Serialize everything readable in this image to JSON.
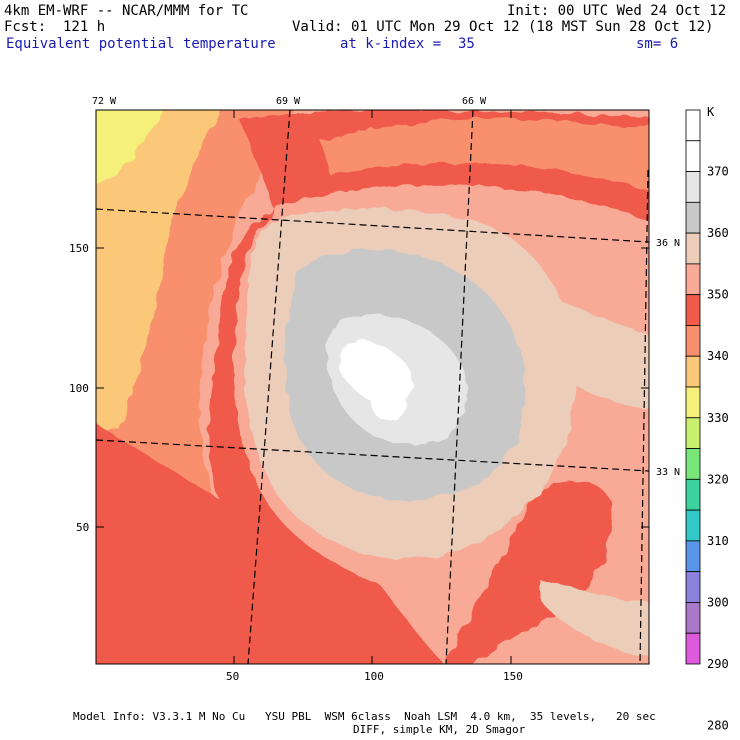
{
  "header": {
    "model": "4km EM-WRF -- NCAR/MMM for TC",
    "fcst": "Fcst:  121 h",
    "init": "Init: 00 UTC Wed 24 Oct 12",
    "valid": "Valid: 01 UTC Mon 29 Oct 12 (18 MST Sun 28 Oct 12)",
    "field": "Equivalent potential temperature",
    "kindex": "at k-index =  35",
    "smooth": "sm= 6"
  },
  "map": {
    "lon_labels": [
      "72 W",
      "69 W",
      "66 W"
    ],
    "lat_labels": [
      "36 N",
      "33 N"
    ],
    "x_ticks": [
      "50",
      "100",
      "150"
    ],
    "y_ticks": [
      "150",
      "100",
      "50"
    ]
  },
  "colorbar": {
    "unit": "K",
    "labels": [
      "370",
      "360",
      "350",
      "340",
      "330",
      "320",
      "310",
      "300",
      "290",
      "280"
    ],
    "colors": [
      "#ffffff",
      "#ffffff",
      "#e6e6e6",
      "#c8c8c8",
      "#ebcdb9",
      "#f8aa96",
      "#f05a4b",
      "#f8906e",
      "#fbc87a",
      "#f5f07a",
      "#c8f06e",
      "#78e678",
      "#3cd2a0",
      "#32c8c8",
      "#5a96e6",
      "#8c82dc",
      "#aa78c8",
      "#dc5adc"
    ]
  },
  "footer": {
    "line1": "Model Info: V3.3.1 M No Cu   YSU PBL  WSM 6class  Noah LSM  4.0 km,  35 levels,   20 sec",
    "line2": "DIFF, simple KM, 2D Smagor"
  }
}
